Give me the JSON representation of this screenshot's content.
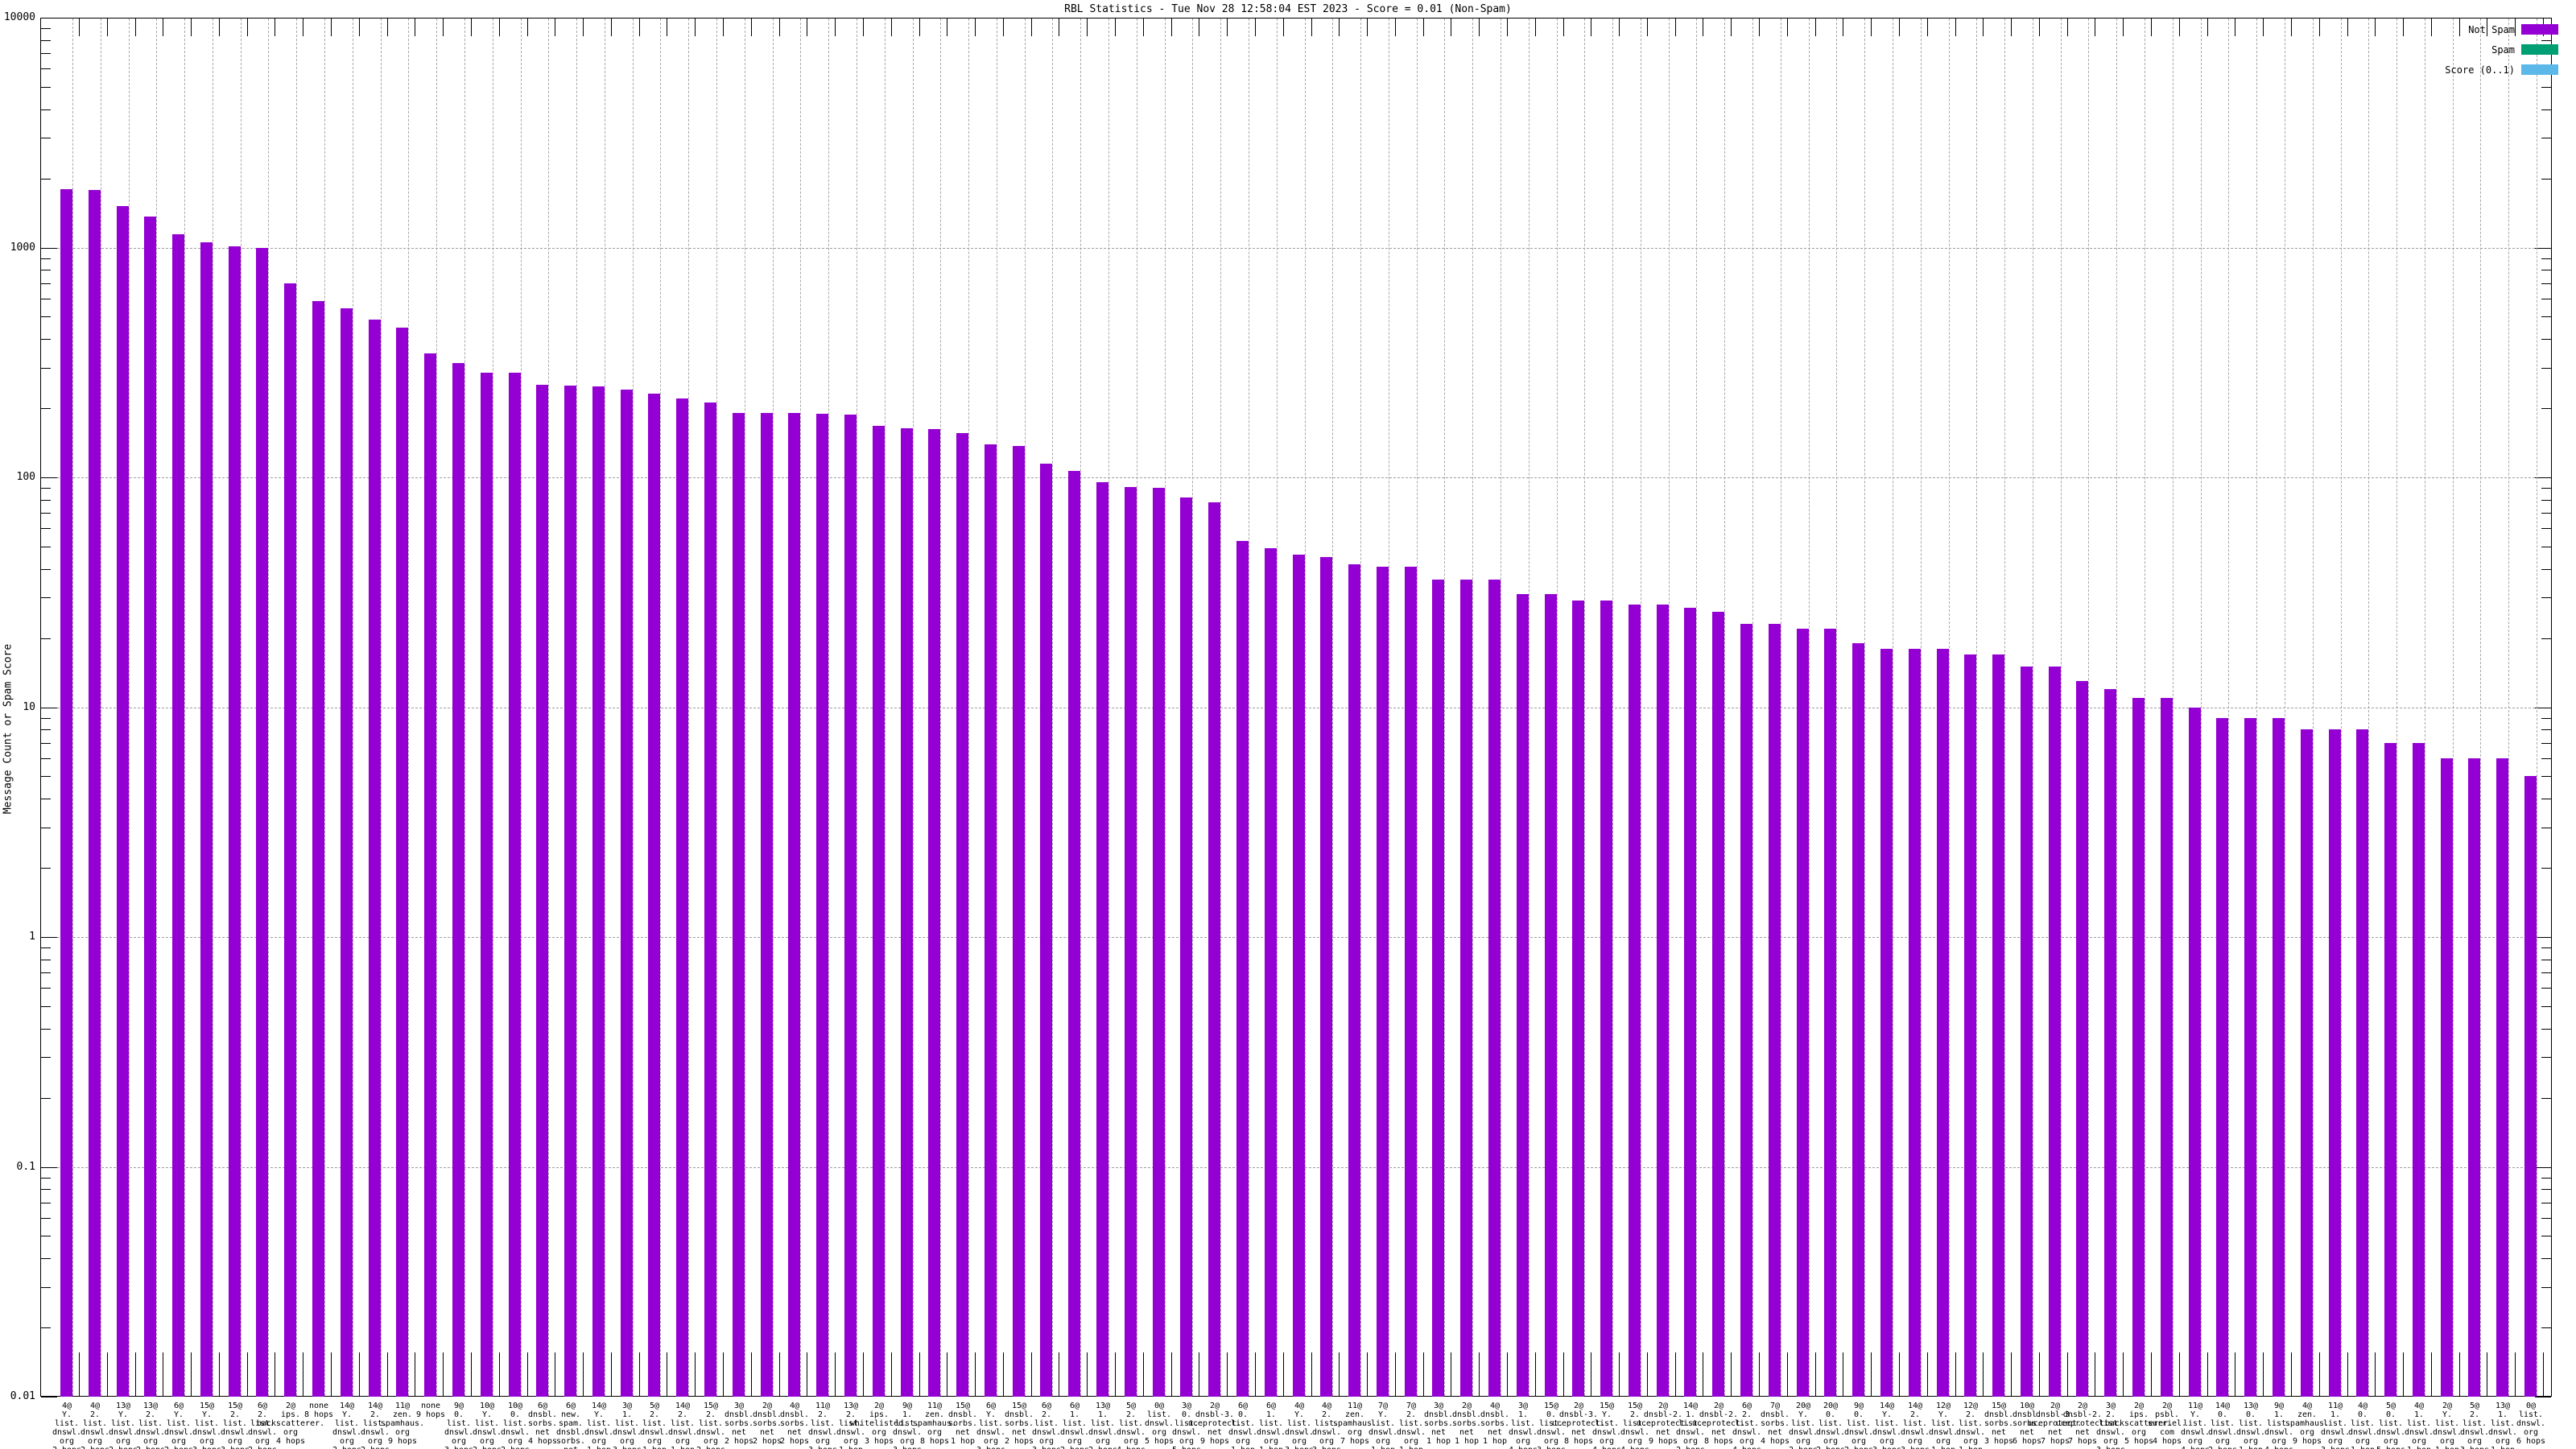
{
  "title": "RBL Statistics - Tue Nov 28 12:58:04 EST 2023 - Score = 0.01 (Non-Spam)",
  "legend": {
    "items": [
      {
        "label": "Not Spam",
        "color": "#9400d3"
      },
      {
        "label": "Spam",
        "color": "#009e73"
      },
      {
        "label": "Score (0..1)",
        "color": "#5bb8e8"
      }
    ]
  },
  "chart_data": {
    "type": "bar",
    "title": "RBL Statistics - Tue Nov 28 12:58:04 EST 2023 - Score = 0.01 (Non-Spam)",
    "ylabel": "Message Count or Spam Score",
    "xlabel": "",
    "y_scale": "log",
    "ylim": [
      0.01,
      10000
    ],
    "y_ticks": [
      "10000",
      "1000",
      "100",
      "10",
      "1",
      "0.1",
      "0.01"
    ],
    "grid": true,
    "legend_position": "top-right",
    "series": [
      {
        "name": "Not Spam",
        "color": "#9400d3"
      }
    ],
    "bars": [
      {
        "rbl": "4@ Y. list. dnswl. org",
        "hops": "2 hops",
        "count": 1800
      },
      {
        "rbl": "4@ 2. list. dnswl. org",
        "hops": "2 hops",
        "count": 1780
      },
      {
        "rbl": "13@ Y. list. dnswl. org",
        "hops": "2 hops",
        "count": 1520
      },
      {
        "rbl": "13@ 2. list. dnswl. org",
        "hops": "2 hops",
        "count": 1360
      },
      {
        "rbl": "6@ Y. list. dnswl. org",
        "hops": "2 hops",
        "count": 1140
      },
      {
        "rbl": "15@ Y. list. dnswl. org",
        "hops": "3 hops",
        "count": 1050
      },
      {
        "rbl": "15@ 2. list. dnswl. org",
        "hops": "3 hops",
        "count": 1010
      },
      {
        "rbl": "6@ 2. list. dnswl. org",
        "hops": "2 hops",
        "count": 1000
      },
      {
        "rbl": "2@ ips. backscatterer. org",
        "hops": "4 hops",
        "count": 700
      },
      {
        "rbl": "none",
        "hops": "8 hops",
        "count": 585
      },
      {
        "rbl": "14@ Y. list. dnswl. org",
        "hops": "2 hops",
        "count": 545
      },
      {
        "rbl": "14@ 2. list. dnswl. org",
        "hops": "2 hops",
        "count": 485
      },
      {
        "rbl": "11@ zen. spamhaus. org",
        "hops": "9 hops",
        "count": 450
      },
      {
        "rbl": "none",
        "hops": "9 hops",
        "count": 345
      },
      {
        "rbl": "9@ 0. list. dnswl. org",
        "hops": "3 hops",
        "count": 315
      },
      {
        "rbl": "10@ Y. list. dnswl. org",
        "hops": "2 hops",
        "count": 285
      },
      {
        "rbl": "10@ 0. list. dnswl. org",
        "hops": "2 hops",
        "count": 285
      },
      {
        "rbl": "6@ dnsbl. sorbs. net",
        "hops": "4 hops",
        "count": 252
      },
      {
        "rbl": "6@ new. spam. dnsbl. sorbs. net",
        "hops": "4 hops",
        "count": 250
      },
      {
        "rbl": "14@ Y. list. dnswl. org",
        "hops": "1 hop",
        "count": 248
      },
      {
        "rbl": "3@ 1. list. dnswl. org",
        "hops": "3 hops",
        "count": 240
      },
      {
        "rbl": "5@ 2. list. dnswl. org",
        "hops": "1 hop",
        "count": 232
      },
      {
        "rbl": "14@ 2. list. dnswl. org",
        "hops": "1 hop",
        "count": 220
      },
      {
        "rbl": "15@ 2. list. dnswl. org",
        "hops": "2 hops",
        "count": 212
      },
      {
        "rbl": "3@ dnsbl. sorbs. net",
        "hops": "2 hops",
        "count": 191
      },
      {
        "rbl": "2@ dnsbl. sorbs. net",
        "hops": "2 hops",
        "count": 190
      },
      {
        "rbl": "4@ dnsbl. sorbs. net",
        "hops": "2 hops",
        "count": 190
      },
      {
        "rbl": "11@ 2. list. dnswl. org",
        "hops": "3 hops",
        "count": 189
      },
      {
        "rbl": "13@ 2. list. dnswl. org",
        "hops": "1 hop",
        "count": 188
      },
      {
        "rbl": "2@ ips. whitelisted. org",
        "hops": "3 hops",
        "count": 167
      },
      {
        "rbl": "9@ 1. list. dnswl. org",
        "hops": "3 hops",
        "count": 163
      },
      {
        "rbl": "11@ zen. spamhaus. org",
        "hops": "8 hops",
        "count": 162
      },
      {
        "rbl": "15@ dnsbl. sorbs. net",
        "hops": "1 hop",
        "count": 156
      },
      {
        "rbl": "6@ Y. list. dnswl. org",
        "hops": "3 hops",
        "count": 139
      },
      {
        "rbl": "15@ dnsbl. sorbs. net",
        "hops": "2 hops",
        "count": 137
      },
      {
        "rbl": "6@ 2. list. dnswl. org",
        "hops": "3 hops",
        "count": 115
      },
      {
        "rbl": "6@ 1. list. dnswl. org",
        "hops": "2 hops",
        "count": 107
      },
      {
        "rbl": "13@ 1. list. dnswl. org",
        "hops": "2 hops",
        "count": 95
      },
      {
        "rbl": "5@ 2. list. dnswl. org",
        "hops": "4 hops",
        "count": 91
      },
      {
        "rbl": "0@ list. dnswl. org",
        "hops": "5 hops",
        "count": 90
      },
      {
        "rbl": "3@ 0. list. dnswl. org",
        "hops": "5 hops",
        "count": 82
      },
      {
        "rbl": "2@ dnsbl-3. uceprotect. net",
        "hops": "9 hops",
        "count": 78
      },
      {
        "rbl": "6@ 0. list. dnswl. org",
        "hops": "1 hop",
        "count": 53
      },
      {
        "rbl": "6@ 1. list. dnswl. org",
        "hops": "1 hop",
        "count": 49
      },
      {
        "rbl": "4@ Y. list. dnswl. org",
        "hops": "3 hops",
        "count": 46
      },
      {
        "rbl": "4@ 2. list. dnswl. org",
        "hops": "3 hops",
        "count": 45
      },
      {
        "rbl": "11@ zen. spamhaus. org",
        "hops": "7 hops",
        "count": 42
      },
      {
        "rbl": "7@ Y. list. dnswl. org",
        "hops": "1 hop",
        "count": 41
      },
      {
        "rbl": "7@ 2. list. dnswl. org",
        "hops": "1 hop",
        "count": 41
      },
      {
        "rbl": "3@ dnsbl. sorbs. net",
        "hops": "1 hop",
        "count": 36
      },
      {
        "rbl": "2@ dnsbl. sorbs. net",
        "hops": "1 hop",
        "count": 36
      },
      {
        "rbl": "4@ dnsbl. sorbs. net",
        "hops": "1 hop",
        "count": 36
      },
      {
        "rbl": "3@ 1. list. dnswl. org",
        "hops": "4 hops",
        "count": 31
      },
      {
        "rbl": "15@ 0. list. dnswl. org",
        "hops": "3 hops",
        "count": 31
      },
      {
        "rbl": "2@ dnsbl-3. uceprotect. net",
        "hops": "8 hops",
        "count": 29
      },
      {
        "rbl": "15@ Y. list. dnswl. org",
        "hops": "4 hops",
        "count": 29
      },
      {
        "rbl": "15@ 2. list. dnswl. org",
        "hops": "4 hops",
        "count": 28
      },
      {
        "rbl": "2@ dnsbl-2. uceprotect. net",
        "hops": "9 hops",
        "count": 28
      },
      {
        "rbl": "14@ 1. list. dnswl. org",
        "hops": "2 hops",
        "count": 27
      },
      {
        "rbl": "2@ dnsbl-2. uceprotect. net",
        "hops": "8 hops",
        "count": 26
      },
      {
        "rbl": "6@ 2. list. dnswl. org",
        "hops": "4 hops",
        "count": 23
      },
      {
        "rbl": "7@ dnsbl. sorbs. net",
        "hops": "4 hops",
        "count": 23
      },
      {
        "rbl": "20@ Y. list. dnswl. org",
        "hops": "2 hops",
        "count": 22
      },
      {
        "rbl": "20@ 0. list. dnswl. org",
        "hops": "2 hops",
        "count": 22
      },
      {
        "rbl": "9@ 0. list. dnswl. org",
        "hops": "2 hops",
        "count": 19
      },
      {
        "rbl": "14@ Y. list. dnswl. org",
        "hops": "3 hops",
        "count": 18
      },
      {
        "rbl": "14@ 2. list. dnswl. org",
        "hops": "3 hops",
        "count": 18
      },
      {
        "rbl": "12@ Y. list. dnswl. org",
        "hops": "1 hop",
        "count": 18
      },
      {
        "rbl": "12@ 2. list. dnswl. org",
        "hops": "1 hop",
        "count": 17
      },
      {
        "rbl": "15@ dnsbl. sorbs. net",
        "hops": "3 hops",
        "count": 17
      },
      {
        "rbl": "10@ dnsbl. sorbs. net",
        "hops": "6 hops",
        "count": 15
      },
      {
        "rbl": "2@ dnsbl-3. uceprotect. net",
        "hops": "7 hops",
        "count": 15
      },
      {
        "rbl": "2@ dnsbl-2. uceprotect. net",
        "hops": "7 hops",
        "count": 13
      },
      {
        "rbl": "3@ 2. list. dnswl. org",
        "hops": "3 hops",
        "count": 12
      },
      {
        "rbl": "2@ ips. backscatterer. org",
        "hops": "5 hops",
        "count": 11
      },
      {
        "rbl": "2@ psbl. surriel. com",
        "hops": "4 hops",
        "count": 11
      },
      {
        "rbl": "11@ Y. list. dnswl. org",
        "hops": "4 hops",
        "count": 10
      },
      {
        "rbl": "14@ 0. list. dnswl. org",
        "hops": "2 hops",
        "count": 9
      },
      {
        "rbl": "13@ 0. list. dnswl. org",
        "hops": "1 hop",
        "count": 9
      },
      {
        "rbl": "9@ 1. list. dnswl. org",
        "hops": "4 hops",
        "count": 9
      },
      {
        "rbl": "4@ zen. spamhaus. org",
        "hops": "9 hops",
        "count": 8
      },
      {
        "rbl": "11@ 1. list. dnswl. org",
        "hops": "3 hops",
        "count": 8
      },
      {
        "rbl": "4@ 0. list. dnswl. org",
        "hops": "1 hop",
        "count": 8
      },
      {
        "rbl": "5@ 0. list. dnswl. org",
        "hops": "5 hops",
        "count": 7
      },
      {
        "rbl": "4@ 1. list. dnswl. org",
        "hops": "1 hop",
        "count": 7
      },
      {
        "rbl": "2@ Y. list. dnswl. org",
        "hops": "1 hop",
        "count": 6
      },
      {
        "rbl": "5@ 2. list. dnswl. org",
        "hops": "3 hops",
        "count": 6
      },
      {
        "rbl": "13@ 1. list. dnswl. org",
        "hops": "1 hop",
        "count": 6
      },
      {
        "rbl": "0@ list. dnswl. org",
        "hops": "6 hops",
        "count": 5
      }
    ]
  }
}
